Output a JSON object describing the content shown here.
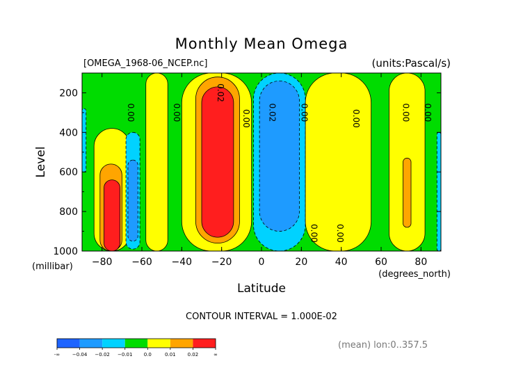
{
  "chart_data": {
    "type": "heatmap",
    "title": "Monthly Mean Omega",
    "file_label": "[OMEGA_1968-06_NCEP.nc]",
    "units_label": "(units:Pascal/s)",
    "xlabel": "Latitude",
    "xunits": "(degrees_north)",
    "ylabel": "Level",
    "yunits": "(millibar)",
    "x_range": [
      -90,
      90
    ],
    "y_range": [
      1000,
      100
    ],
    "x_ticks": [
      -80,
      -60,
      -40,
      -20,
      0,
      20,
      40,
      60,
      80
    ],
    "x_tick_labels": [
      "−80",
      "−60",
      "−40",
      "−20",
      "0",
      "20",
      "40",
      "60",
      "80"
    ],
    "y_ticks": [
      200,
      400,
      600,
      800,
      1000
    ],
    "y_tick_labels": [
      "200",
      "400",
      "600",
      "800",
      "1000"
    ],
    "contour_interval_text": "CONTOUR INTERVAL = 1.000E-02",
    "footer_note": "(mean) lon:0..357.5",
    "colorbar": {
      "levels": [
        "-∞",
        "−0.04",
        "−0.02",
        "−0.01",
        "0.0",
        "0.01",
        "0.02",
        "∞"
      ],
      "colors": [
        "#1e64ff",
        "#1e9bff",
        "#00d2ff",
        "#00dc00",
        "#ffff00",
        "#ffa500",
        "#ff1e1e"
      ]
    },
    "background_value": 0.0,
    "regions": [
      {
        "level": 0.015,
        "color": "#ffff00",
        "lat": [
          -84,
          -66
        ],
        "p": [
          1000,
          380
        ]
      },
      {
        "level": 0.025,
        "color": "#ffa500",
        "lat": [
          -81,
          -70
        ],
        "p": [
          1000,
          560
        ]
      },
      {
        "level": 0.035,
        "color": "#ff1e1e",
        "lat": [
          -79,
          -71
        ],
        "p": [
          1000,
          640
        ]
      },
      {
        "level": 0.005,
        "color": "#ffff00",
        "lat": [
          -58,
          -47
        ],
        "p": [
          1000,
          100
        ]
      },
      {
        "level": 0.005,
        "color": "#ffff00",
        "lat": [
          -40,
          -5
        ],
        "p": [
          1000,
          100
        ]
      },
      {
        "level": 0.015,
        "color": "#ffa500",
        "lat": [
          -33,
          -11
        ],
        "p": [
          960,
          120
        ]
      },
      {
        "level": 0.025,
        "color": "#ff1e1e",
        "lat": [
          -30,
          -14
        ],
        "p": [
          930,
          170
        ]
      },
      {
        "level": -0.005,
        "color": "#00d2ff",
        "lat": [
          -4,
          22
        ],
        "p": [
          1000,
          100
        ]
      },
      {
        "level": -0.015,
        "color": "#1e9bff",
        "lat": [
          -1,
          19
        ],
        "p": [
          900,
          140
        ]
      },
      {
        "level": -0.015,
        "color": "#00d2ff",
        "lat": [
          -68,
          -61
        ],
        "p": [
          990,
          400
        ]
      },
      {
        "level": -0.015,
        "color": "#1e9bff",
        "lat": [
          -67,
          -62
        ],
        "p": [
          950,
          540
        ]
      },
      {
        "level": 0.005,
        "color": "#ffff00",
        "lat": [
          22,
          55
        ],
        "p": [
          1000,
          100
        ]
      },
      {
        "level": 0.005,
        "color": "#ffff00",
        "lat": [
          64,
          82
        ],
        "p": [
          1000,
          100
        ]
      },
      {
        "level": 0.015,
        "color": "#ffa500",
        "lat": [
          71,
          75
        ],
        "p": [
          880,
          530
        ]
      },
      {
        "level": -0.005,
        "color": "#00d2ff",
        "lat": [
          -90,
          -88
        ],
        "p": [
          600,
          280
        ]
      },
      {
        "level": -0.005,
        "color": "#00d2ff",
        "lat": [
          88,
          90
        ],
        "p": [
          1000,
          400
        ]
      }
    ],
    "contour_labels": [
      {
        "text": "0.02",
        "lat": -22,
        "p": 200
      },
      {
        "text": "0.00",
        "lat": -67,
        "p": 300
      },
      {
        "text": "0.00",
        "lat": -44,
        "p": 300
      },
      {
        "text": "0.00",
        "lat": -9,
        "p": 330
      },
      {
        "text": "0.02",
        "lat": 4,
        "p": 300
      },
      {
        "text": "0.00",
        "lat": 20,
        "p": 300
      },
      {
        "text": "0.00",
        "lat": 46,
        "p": 330
      },
      {
        "text": "0.00",
        "lat": 71,
        "p": 300
      },
      {
        "text": "0.00",
        "lat": 82,
        "p": 300
      },
      {
        "text": "0.00",
        "lat": 25,
        "p": 910
      },
      {
        "text": "0.00",
        "lat": 38,
        "p": 910
      }
    ]
  }
}
